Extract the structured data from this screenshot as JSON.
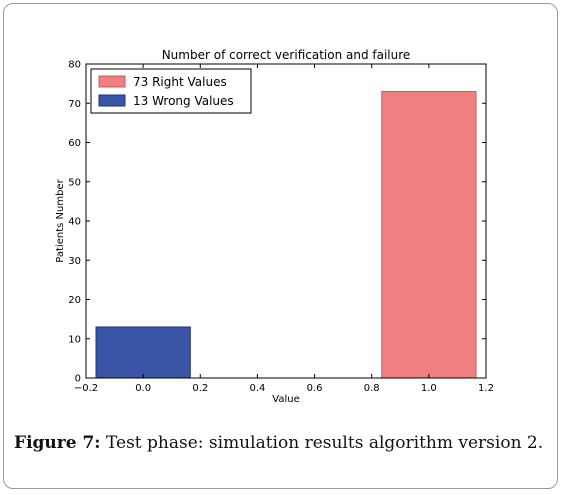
{
  "caption": {
    "label": "Figure 7:",
    "text": "Test phase: simulation results algorithm version 2."
  },
  "chart_data": {
    "type": "bar",
    "title": "Number of correct verification and failure",
    "xlabel": "Value",
    "ylabel": "Patients Number",
    "xlim": [
      -0.2,
      1.2
    ],
    "ylim": [
      0,
      80
    ],
    "xticks": [
      "−0.2",
      "0.0",
      "0.2",
      "0.4",
      "0.6",
      "0.8",
      "1.0",
      "1.2"
    ],
    "xtick_values": [
      -0.2,
      0.0,
      0.2,
      0.4,
      0.6,
      0.8,
      1.0,
      1.2
    ],
    "yticks": [
      "0",
      "10",
      "20",
      "30",
      "40",
      "50",
      "60",
      "70",
      "80"
    ],
    "ytick_values": [
      0,
      10,
      20,
      30,
      40,
      50,
      60,
      70,
      80
    ],
    "grid": false,
    "legend_position": "top-left",
    "bar_width": 0.33,
    "series": [
      {
        "name": "73 Right Values",
        "x": 1.0,
        "value": 73,
        "color": "#f07f7f",
        "edge": "#c06060"
      },
      {
        "name": "13 Wrong Values",
        "x": 0.0,
        "value": 13,
        "color": "#3a55a6",
        "edge": "#22337a"
      }
    ]
  }
}
